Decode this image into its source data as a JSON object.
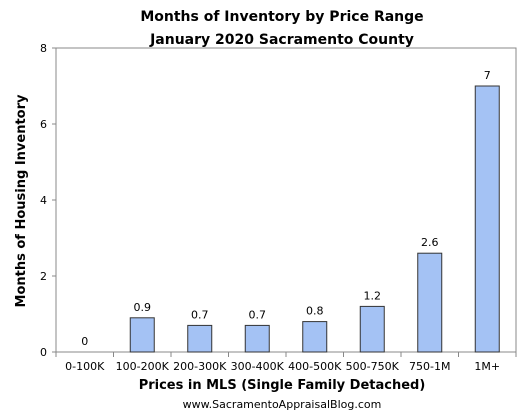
{
  "chart_data": {
    "type": "bar",
    "title": "Months of Inventory by Price Range",
    "subtitle": "January  2020 Sacramento County",
    "xlabel": "Prices in MLS (Single Family Detached)",
    "ylabel": "Months of Housing Inventory",
    "categories": [
      "0-100K",
      "100-200K",
      "200-300K",
      "300-400K",
      "400-500K",
      "500-750K",
      "750-1M",
      "1M+"
    ],
    "values": [
      0,
      0.9,
      0.7,
      0.7,
      0.8,
      1.2,
      2.6,
      7
    ],
    "data_labels": [
      "0",
      "0.9",
      "0.7",
      "0.7",
      "0.8",
      "1.2",
      "2.6",
      "7"
    ],
    "ylim": [
      0,
      8
    ],
    "yticks": [
      0,
      2,
      4,
      6,
      8
    ],
    "grid": false,
    "legend": "none",
    "bar_color": "#a4c2f4",
    "bar_stroke": "#333333"
  },
  "footer": "www.SacramentoAppraisalBlog.com"
}
